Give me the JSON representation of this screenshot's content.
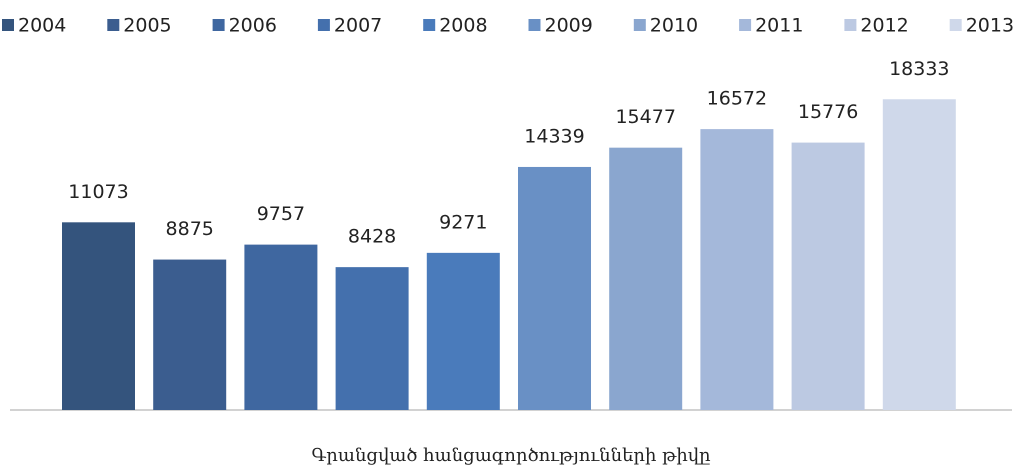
{
  "chart_data": {
    "type": "bar",
    "categories": [
      "Գրանցված հանցագործությունների թիվը"
    ],
    "series": [
      {
        "name": "2004",
        "color": "#34547d",
        "values": [
          11073
        ]
      },
      {
        "name": "2005",
        "color": "#3b5d8f",
        "values": [
          8875
        ]
      },
      {
        "name": "2006",
        "color": "#3f67a0",
        "values": [
          9757
        ]
      },
      {
        "name": "2007",
        "color": "#4470ad",
        "values": [
          8428
        ]
      },
      {
        "name": "2008",
        "color": "#4a7bbb",
        "values": [
          9271
        ]
      },
      {
        "name": "2009",
        "color": "#6990c5",
        "values": [
          14339
        ]
      },
      {
        "name": "2010",
        "color": "#8aa6cf",
        "values": [
          15477
        ]
      },
      {
        "name": "2011",
        "color": "#a4b8da",
        "values": [
          16572
        ]
      },
      {
        "name": "2012",
        "color": "#bcc9e2",
        "values": [
          15776
        ]
      },
      {
        "name": "2013",
        "color": "#cfd8ea",
        "values": [
          18333
        ]
      }
    ],
    "ylim": [
      0,
      20000
    ],
    "legend": "top"
  }
}
